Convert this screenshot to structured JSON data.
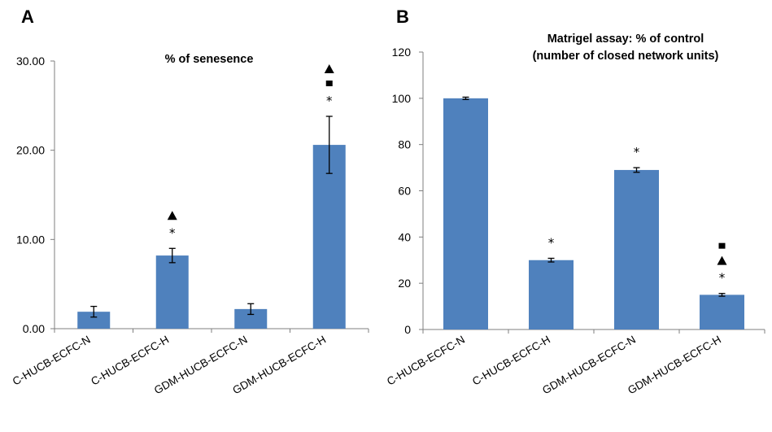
{
  "chart_data": [
    {
      "panel": "A",
      "type": "bar",
      "title": "% of senesence",
      "categories": [
        "C-HUCB-ECFC-N",
        "C-HUCB-ECFC-H",
        "GDM-HUCB-ECFC-N",
        "GDM-HUCB-ECFC-H"
      ],
      "values": [
        1.9,
        8.2,
        2.2,
        20.6
      ],
      "errors": [
        0.6,
        0.8,
        0.6,
        3.2
      ],
      "ylim": [
        0,
        30
      ],
      "yticks": [
        "0.00",
        "10.00",
        "20.00",
        "30.00"
      ],
      "markers": [
        [],
        [
          "triangle",
          "asterisk"
        ],
        [],
        [
          "triangle",
          "square",
          "asterisk"
        ]
      ],
      "bar_color": "#4F81BD"
    },
    {
      "panel": "B",
      "type": "bar",
      "title_lines": [
        "Matrigel assay: % of control",
        "(number of closed network units)"
      ],
      "categories": [
        "C-HUCB-ECFC-N",
        "C-HUCB-ECFC-H",
        "GDM-HUCB-ECFC-N",
        "GDM-HUCB-ECFC-H"
      ],
      "values": [
        100,
        30,
        69,
        15
      ],
      "errors": [
        0.5,
        0.8,
        1.0,
        0.6
      ],
      "ylim": [
        0,
        120
      ],
      "yticks": [
        "0",
        "20",
        "40",
        "60",
        "80",
        "100",
        "120"
      ],
      "markers": [
        [],
        [
          "asterisk"
        ],
        [
          "asterisk"
        ],
        [
          "square",
          "triangle",
          "asterisk"
        ]
      ],
      "bar_color": "#4F81BD"
    }
  ]
}
